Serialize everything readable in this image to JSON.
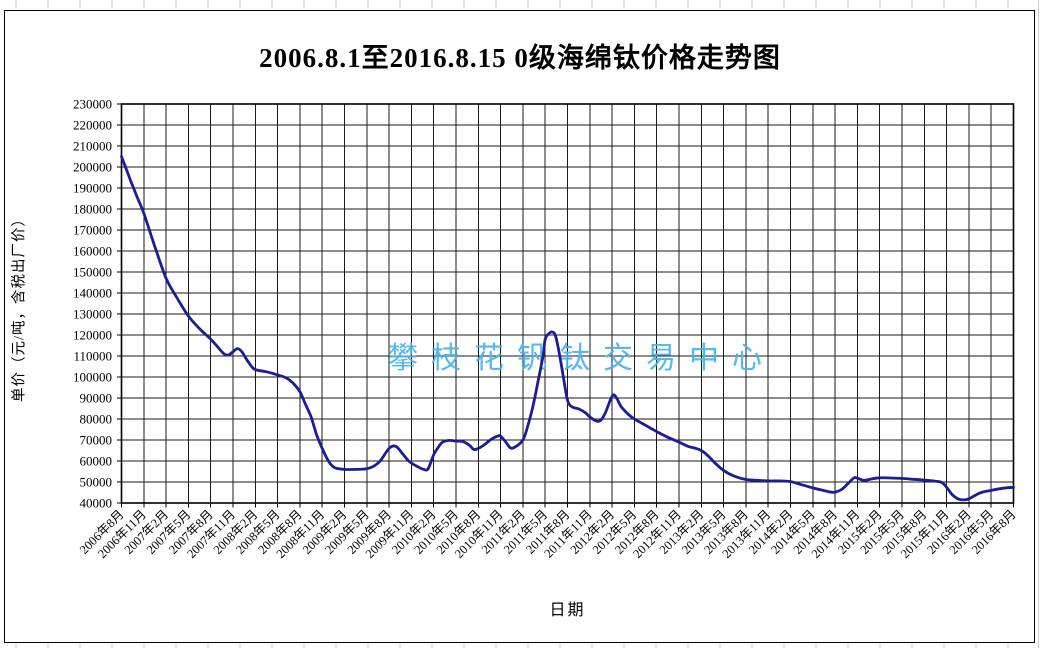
{
  "title": "2006.8.1至2016.8.15  0级海绵钛价格走势图",
  "watermark": "攀枝花钒钛交易中心",
  "chart_data": {
    "type": "line",
    "title": "2006.8.1至2016.8.15  0级海绵钛价格走势图",
    "xlabel": "日期",
    "ylabel": "单价（元/吨，含税出厂价）",
    "ylim": [
      40000,
      230000
    ],
    "ytick_step": 10000,
    "grid": "both",
    "legend_position": "none",
    "line_color": "#1c1c96",
    "grid_color": "#1a1a1a",
    "watermark_color": "#45b4ef",
    "x_categories": [
      "2006年8月",
      "2006年11月",
      "2007年2月",
      "2007年5月",
      "2007年8月",
      "2007年11月",
      "2008年2月",
      "2008年5月",
      "2008年8月",
      "2008年11月",
      "2009年2月",
      "2009年5月",
      "2009年8月",
      "2009年11月",
      "2010年2月",
      "2010年5月",
      "2010年8月",
      "2010年11月",
      "2011年2月",
      "2011年5月",
      "2011年8月",
      "2011年11月",
      "2012年2月",
      "2012年5月",
      "2012年8月",
      "2012年11月",
      "2013年2月",
      "2013年5月",
      "2013年8月",
      "2013年11月",
      "2014年2月",
      "2014年5月",
      "2014年8月",
      "2014年11月",
      "2015年2月",
      "2015年5月",
      "2015年8月",
      "2015年11月",
      "2016年2月",
      "2016年5月",
      "2016年8月"
    ],
    "series": [
      {
        "name": "0级海绵钛价格（元/吨）",
        "x_unit": "quarter-index from 2006年8月",
        "points": [
          [
            0,
            205000
          ],
          [
            0.25,
            198000
          ],
          [
            0.5,
            191000
          ],
          [
            0.75,
            184500
          ],
          [
            1,
            178000
          ],
          [
            1.5,
            162000
          ],
          [
            2,
            147000
          ],
          [
            2.5,
            137500
          ],
          [
            3,
            129000
          ],
          [
            3.5,
            123000
          ],
          [
            4,
            118000
          ],
          [
            4.3,
            114500
          ],
          [
            4.6,
            111000
          ],
          [
            4.8,
            110500
          ],
          [
            5,
            112000
          ],
          [
            5.2,
            113500
          ],
          [
            5.4,
            112000
          ],
          [
            5.6,
            108500
          ],
          [
            5.8,
            105500
          ],
          [
            6,
            103500
          ],
          [
            6.5,
            102500
          ],
          [
            7,
            101000
          ],
          [
            7.4,
            99500
          ],
          [
            7.7,
            97000
          ],
          [
            8,
            93000
          ],
          [
            8.25,
            87000
          ],
          [
            8.5,
            81000
          ],
          [
            8.75,
            72500
          ],
          [
            9,
            66000
          ],
          [
            9.25,
            60500
          ],
          [
            9.5,
            57200
          ],
          [
            9.75,
            56300
          ],
          [
            10,
            56000
          ],
          [
            10.5,
            56000
          ],
          [
            11,
            56300
          ],
          [
            11.3,
            57500
          ],
          [
            11.6,
            60000
          ],
          [
            12,
            66000
          ],
          [
            12.3,
            67000
          ],
          [
            12.6,
            63500
          ],
          [
            12.9,
            59800
          ],
          [
            13.3,
            57200
          ],
          [
            13.55,
            56000
          ],
          [
            13.75,
            56300
          ],
          [
            14,
            63000
          ],
          [
            14.2,
            66500
          ],
          [
            14.4,
            69000
          ],
          [
            14.7,
            69800
          ],
          [
            15,
            69500
          ],
          [
            15.3,
            69300
          ],
          [
            15.6,
            67500
          ],
          [
            15.8,
            65500
          ],
          [
            16,
            66000
          ],
          [
            16.3,
            68000
          ],
          [
            16.6,
            70500
          ],
          [
            16.9,
            72000
          ],
          [
            17,
            71800
          ],
          [
            17.2,
            69500
          ],
          [
            17.45,
            66200
          ],
          [
            17.7,
            67000
          ],
          [
            18,
            70000
          ],
          [
            18.2,
            76000
          ],
          [
            18.45,
            86000
          ],
          [
            18.7,
            99000
          ],
          [
            18.9,
            110000
          ],
          [
            19,
            118000
          ],
          [
            19.15,
            120500
          ],
          [
            19.3,
            121500
          ],
          [
            19.45,
            120000
          ],
          [
            19.6,
            113000
          ],
          [
            19.8,
            101000
          ],
          [
            20,
            89000
          ],
          [
            20.2,
            85800
          ],
          [
            20.5,
            84800
          ],
          [
            20.8,
            83000
          ],
          [
            21,
            81000
          ],
          [
            21.3,
            79000
          ],
          [
            21.5,
            79500
          ],
          [
            21.7,
            83000
          ],
          [
            21.9,
            88500
          ],
          [
            22.05,
            91500
          ],
          [
            22.2,
            90000
          ],
          [
            22.4,
            86000
          ],
          [
            22.7,
            82500
          ],
          [
            23,
            80000
          ],
          [
            23.5,
            77000
          ],
          [
            24,
            74000
          ],
          [
            24.5,
            71300
          ],
          [
            25,
            69000
          ],
          [
            25.4,
            67000
          ],
          [
            25.7,
            66200
          ],
          [
            26,
            65000
          ],
          [
            26.3,
            62500
          ],
          [
            26.6,
            59200
          ],
          [
            27,
            55500
          ],
          [
            27.5,
            52700
          ],
          [
            28,
            51200
          ],
          [
            28.5,
            50800
          ],
          [
            29,
            50500
          ],
          [
            29.5,
            50500
          ],
          [
            30,
            50200
          ],
          [
            30.5,
            48700
          ],
          [
            31,
            47200
          ],
          [
            31.5,
            45900
          ],
          [
            31.8,
            45200
          ],
          [
            32,
            45200
          ],
          [
            32.3,
            46500
          ],
          [
            32.6,
            49500
          ],
          [
            32.85,
            52000
          ],
          [
            33,
            51800
          ],
          [
            33.3,
            50800
          ],
          [
            33.6,
            51400
          ],
          [
            34,
            52000
          ],
          [
            34.5,
            51900
          ],
          [
            35,
            51700
          ],
          [
            35.5,
            51300
          ],
          [
            36,
            50900
          ],
          [
            36.5,
            50400
          ],
          [
            36.8,
            49700
          ],
          [
            37,
            47500
          ],
          [
            37.25,
            44000
          ],
          [
            37.5,
            42000
          ],
          [
            37.75,
            41500
          ],
          [
            38,
            42000
          ],
          [
            38.5,
            44800
          ],
          [
            39,
            46000
          ],
          [
            39.5,
            47000
          ],
          [
            40,
            47500
          ]
        ]
      }
    ]
  }
}
